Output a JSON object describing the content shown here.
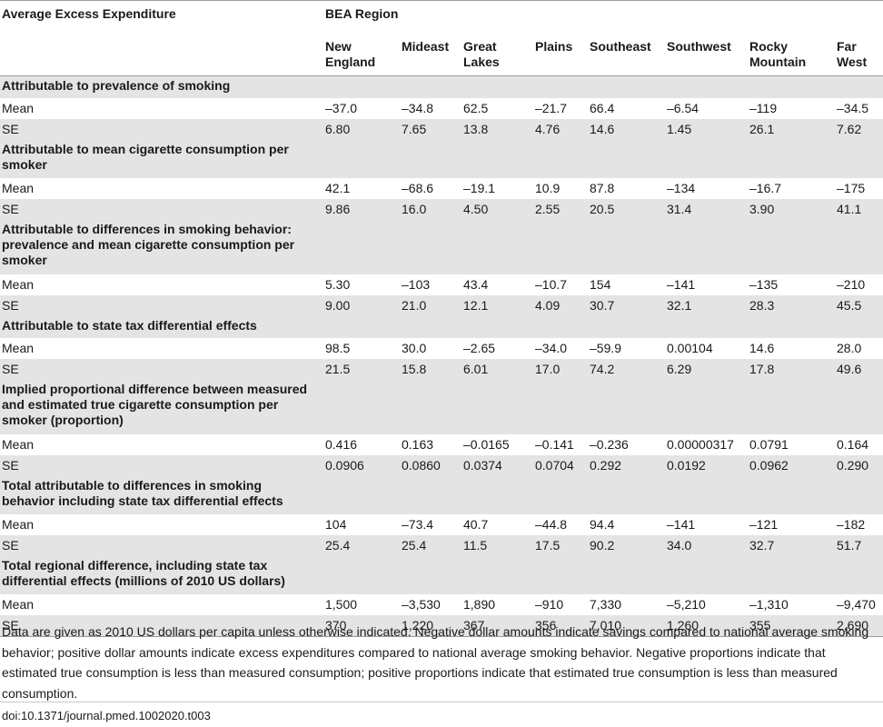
{
  "header": {
    "row_label": "Average Excess Expenditure",
    "group": "BEA Region",
    "regions": [
      "New England",
      "Mideast",
      "Great Lakes",
      "Plains",
      "Southeast",
      "Southwest",
      "Rocky Mountain",
      "Far West"
    ]
  },
  "sections": [
    {
      "title": "Attributable to prevalence of smoking",
      "mean": [
        "–37.0",
        "–34.8",
        "62.5",
        "–21.7",
        "66.4",
        "–6.54",
        "–119",
        "–34.5"
      ],
      "se": [
        "6.80",
        "7.65",
        "13.8",
        "4.76",
        "14.6",
        "1.45",
        "26.1",
        "7.62"
      ]
    },
    {
      "title": "Attributable to mean cigarette consumption per smoker",
      "mean": [
        "42.1",
        "–68.6",
        "–19.1",
        "10.9",
        "87.8",
        "–134",
        "–16.7",
        "–175"
      ],
      "se": [
        "9.86",
        "16.0",
        "4.50",
        "2.55",
        "20.5",
        "31.4",
        "3.90",
        "41.1"
      ]
    },
    {
      "title": "Attributable to differences in smoking behavior: prevalence and mean cigarette consumption per smoker",
      "mean": [
        "5.30",
        "–103",
        "43.4",
        "–10.7",
        "154",
        "–141",
        "–135",
        "–210"
      ],
      "se": [
        "9.00",
        "21.0",
        "12.1",
        "4.09",
        "30.7",
        "32.1",
        "28.3",
        "45.5"
      ]
    },
    {
      "title": "Attributable to state tax differential effects",
      "mean": [
        "98.5",
        "30.0",
        "–2.65",
        "–34.0",
        "–59.9",
        "0.00104",
        "14.6",
        "28.0"
      ],
      "se": [
        "21.5",
        "15.8",
        "6.01",
        "17.0",
        "74.2",
        "6.29",
        "17.8",
        "49.6"
      ]
    },
    {
      "title": "Implied proportional difference between measured and estimated true cigarette consumption per smoker (proportion)",
      "mean": [
        "0.416",
        "0.163",
        "–0.0165",
        "–0.141",
        "–0.236",
        "0.00000317",
        "0.0791",
        "0.164"
      ],
      "se": [
        "0.0906",
        "0.0860",
        "0.0374",
        "0.0704",
        "0.292",
        "0.0192",
        "0.0962",
        "0.290"
      ]
    },
    {
      "title": "Total attributable to differences in smoking behavior including state tax differential effects",
      "mean": [
        "104",
        "–73.4",
        "40.7",
        "–44.8",
        "94.4",
        "–141",
        "–121",
        "–182"
      ],
      "se": [
        "25.4",
        "25.4",
        "11.5",
        "17.5",
        "90.2",
        "34.0",
        "32.7",
        "51.7"
      ]
    },
    {
      "title": "Total regional difference, including state tax differential effects (millions of 2010 US dollars)",
      "mean": [
        "1,500",
        "–3,530",
        "1,890",
        "–910",
        "7,330",
        "–5,210",
        "–1,310",
        "–9,470"
      ],
      "se": [
        "370",
        "1,220",
        "367",
        "356",
        "7,010",
        "1,260",
        "355",
        "2,690"
      ]
    }
  ],
  "labels": {
    "mean": "Mean",
    "se": "SE"
  },
  "footnote": "Data are given as 2010 US dollars per capita unless otherwise indicated. Negative dollar amounts indicate savings compared to national average smoking behavior; positive dollar amounts indicate excess expenditures compared to national average smoking behavior. Negative proportions indicate that estimated true consumption is less than measured consumption; positive proportions indicate that estimated true consumption is less than measured consumption.",
  "doi": "doi:10.1371/journal.pmed.1002020.t003"
}
